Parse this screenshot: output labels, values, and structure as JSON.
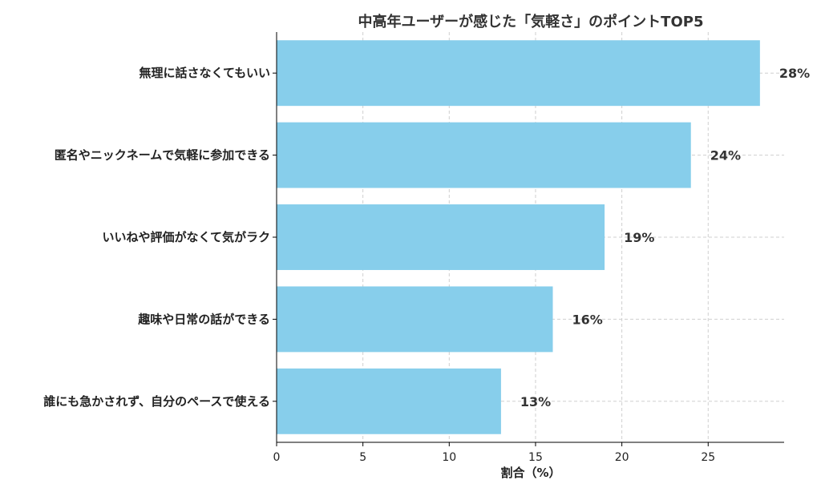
{
  "chart_data": {
    "type": "bar",
    "orientation": "horizontal",
    "title": "中高年ユーザーが感じた「気軽さ」のポイントTOP5",
    "xlabel": "割合（%）",
    "ylabel": "",
    "categories": [
      "無理に話さなくてもいい",
      "匿名やニックネームで気軽に参加できる",
      "いいねや評価がなくて気がラク",
      "趣味や日常の話ができる",
      "誰にも急かされず、自分のペースで使える"
    ],
    "values": [
      28,
      24,
      19,
      16,
      13
    ],
    "value_labels": [
      "28%",
      "24%",
      "19%",
      "16%",
      "13%"
    ],
    "xlim": [
      0,
      29.4
    ],
    "xticks": [
      0,
      5,
      10,
      15,
      20,
      25
    ],
    "grid": true,
    "bar_color": "#87ceeb"
  }
}
